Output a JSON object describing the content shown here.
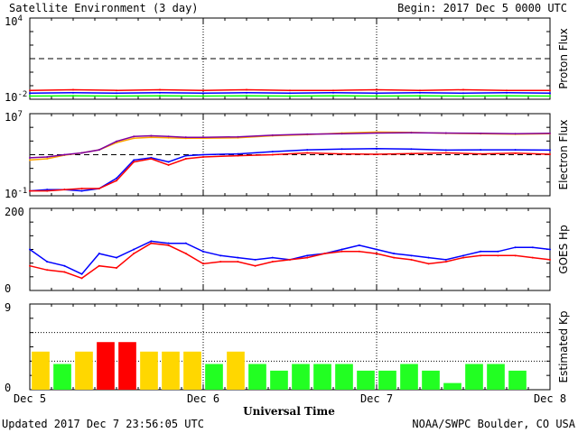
{
  "header": {
    "title": "Satellite Environment (3 day)",
    "begin": "Begin:  2017 Dec 5 0000 UTC"
  },
  "footer": {
    "updated": "Updated 2017 Dec  7 23:56:05 UTC",
    "credit": "NOAA/SWPC Boulder, CO USA"
  },
  "xaxis": {
    "title": "Universal Time",
    "ticks": [
      "Dec 5",
      "Dec 6",
      "Dec 7",
      "Dec 8"
    ]
  },
  "colors": {
    "red": "#ff0000",
    "blue": "#0000ff",
    "green": "#00ff00",
    "orange": "#ffa500",
    "purple": "#8000a0",
    "yellow": "#ffd700",
    "kp_green": "#22ff22",
    "kp_red": "#ff0000"
  },
  "chart_data": [
    {
      "type": "line",
      "ylabel": "Proton Flux",
      "yscale": "log",
      "ylim": [
        0.01,
        10000
      ],
      "ytick_labels": [
        "10^4",
        "10^-2"
      ],
      "threshold": 10,
      "x": [
        0,
        0.25,
        0.5,
        0.75,
        1,
        1.25,
        1.5,
        1.75,
        2,
        2.25,
        2.5,
        2.75,
        3
      ],
      "series": [
        {
          "color": "red",
          "values": [
            0.045,
            0.05,
            0.045,
            0.05,
            0.045,
            0.05,
            0.045,
            0.045,
            0.05,
            0.045,
            0.05,
            0.045,
            0.045
          ]
        },
        {
          "color": "blue",
          "values": [
            0.028,
            0.03,
            0.028,
            0.03,
            0.028,
            0.03,
            0.028,
            0.03,
            0.028,
            0.03,
            0.028,
            0.03,
            0.028
          ]
        },
        {
          "color": "green",
          "values": [
            0.017,
            0.018,
            0.017,
            0.018,
            0.017,
            0.018,
            0.017,
            0.018,
            0.017,
            0.018,
            0.017,
            0.018,
            0.017
          ]
        }
      ]
    },
    {
      "type": "line",
      "ylabel": "Electron Flux",
      "yscale": "log",
      "ylim": [
        0.1,
        10000000
      ],
      "ytick_labels": [
        "10^7",
        "10^-1"
      ],
      "threshold": 1000,
      "x": [
        0,
        0.1,
        0.2,
        0.3,
        0.4,
        0.5,
        0.6,
        0.7,
        0.8,
        0.9,
        1.0,
        1.2,
        1.4,
        1.6,
        1.8,
        2.0,
        2.2,
        2.4,
        2.6,
        2.8,
        3.0
      ],
      "series": [
        {
          "color": "orange",
          "values": [
            300,
            400,
            900,
            1500,
            3000,
            15000,
            40000,
            50000,
            45000,
            40000,
            40000,
            45000,
            70000,
            90000,
            130000,
            160000,
            150000,
            120000,
            110000,
            100000,
            110000
          ]
        },
        {
          "color": "purple",
          "values": [
            500,
            600,
            1000,
            1500,
            3000,
            20000,
            60000,
            70000,
            60000,
            50000,
            50000,
            55000,
            80000,
            100000,
            110000,
            130000,
            140000,
            130000,
            120000,
            110000,
            120000
          ]
        },
        {
          "color": "blue",
          "values": [
            0.3,
            0.4,
            0.4,
            0.3,
            0.5,
            5,
            300,
            500,
            200,
            800,
            1000,
            1200,
            2000,
            3000,
            3500,
            4000,
            3500,
            2800,
            3000,
            3000,
            2800
          ]
        },
        {
          "color": "red",
          "values": [
            0.3,
            0.3,
            0.4,
            0.5,
            0.5,
            3,
            200,
            400,
            100,
            400,
            600,
            800,
            1000,
            1500,
            1200,
            1100,
            1300,
            1500,
            1200,
            1400,
            1100
          ]
        }
      ]
    },
    {
      "type": "line",
      "ylabel": "GOES Hp",
      "yscale": "linear",
      "ylim": [
        0,
        200
      ],
      "ytick_labels": [
        "200",
        "0"
      ],
      "x": [
        0,
        0.1,
        0.2,
        0.3,
        0.4,
        0.5,
        0.6,
        0.7,
        0.8,
        0.9,
        1.0,
        1.1,
        1.2,
        1.3,
        1.4,
        1.5,
        1.6,
        1.7,
        1.8,
        1.9,
        2.0,
        2.1,
        2.2,
        2.3,
        2.4,
        2.5,
        2.6,
        2.7,
        2.8,
        2.9,
        3.0
      ],
      "series": [
        {
          "color": "blue",
          "values": [
            100,
            70,
            60,
            40,
            90,
            80,
            100,
            120,
            115,
            115,
            95,
            85,
            80,
            75,
            80,
            75,
            85,
            90,
            100,
            110,
            100,
            90,
            85,
            80,
            75,
            85,
            95,
            95,
            105,
            105,
            100
          ]
        },
        {
          "color": "red",
          "values": [
            60,
            50,
            45,
            30,
            60,
            55,
            90,
            115,
            110,
            90,
            65,
            70,
            70,
            60,
            70,
            75,
            80,
            90,
            95,
            95,
            90,
            80,
            75,
            65,
            70,
            80,
            85,
            85,
            85,
            80,
            75
          ]
        }
      ]
    },
    {
      "type": "bar",
      "ylabel": "Estimated Kp",
      "ylim": [
        0,
        9
      ],
      "ytick_labels": [
        "9",
        "0"
      ],
      "kp_values": [
        4,
        2.7,
        4,
        5,
        5,
        4,
        4,
        4,
        2.7,
        4,
        2.7,
        2,
        2.7,
        2.7,
        2.7,
        2,
        2,
        2.7,
        2,
        0.7,
        2.7,
        2.7,
        2
      ],
      "kp_colors": [
        "yellow",
        "green",
        "yellow",
        "red",
        "red",
        "yellow",
        "yellow",
        "yellow",
        "green",
        "yellow",
        "green",
        "green",
        "green",
        "green",
        "green",
        "green",
        "green",
        "green",
        "green",
        "green",
        "green",
        "green",
        "green"
      ]
    }
  ]
}
